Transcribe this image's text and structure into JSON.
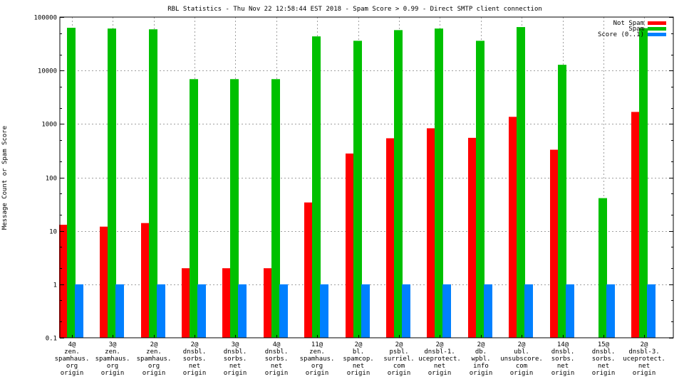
{
  "chart_data": {
    "type": "bar",
    "title": "RBL Statistics - Thu Nov 22 12:58:44 EST 2018 - Spam Score > 0.99 - Direct SMTP client connection",
    "xlabel": "",
    "ylabel": "Message Count or Spam Score",
    "yscale": "log",
    "ylim": [
      0.1,
      100000
    ],
    "yticks": [
      "0.1",
      "1",
      "10",
      "100",
      "1000",
      "10000",
      "100000"
    ],
    "ytick_values": [
      0.1,
      1,
      10,
      100,
      1000,
      10000,
      100000
    ],
    "grid": true,
    "legend_position": "top-right",
    "categories": [
      [
        "4@",
        "zen.",
        "spamhaus.",
        "org",
        "origin"
      ],
      [
        "3@",
        "zen.",
        "spamhaus.",
        "org",
        "origin"
      ],
      [
        "2@",
        "zen.",
        "spamhaus.",
        "org",
        "origin"
      ],
      [
        "2@",
        "dnsbl.",
        "sorbs.",
        "net",
        "origin"
      ],
      [
        "3@",
        "dnsbl.",
        "sorbs.",
        "net",
        "origin"
      ],
      [
        "4@",
        "dnsbl.",
        "sorbs.",
        "net",
        "origin"
      ],
      [
        "11@",
        "zen.",
        "spamhaus.",
        "org",
        "origin"
      ],
      [
        "2@",
        "bl.",
        "spamcop.",
        "net",
        "origin"
      ],
      [
        "2@",
        "psbl.",
        "surriel.",
        "com",
        "origin"
      ],
      [
        "2@",
        "dnsbl-1.",
        "uceprotect.",
        "net",
        "origin"
      ],
      [
        "2@",
        "db.",
        "wpbl.",
        "info",
        "origin"
      ],
      [
        "2@",
        "ubl.",
        "unsubscore.",
        "com",
        "origin"
      ],
      [
        "14@",
        "dnsbl.",
        "sorbs.",
        "net",
        "origin"
      ],
      [
        "15@",
        "dnsbl.",
        "sorbs.",
        "net",
        "origin"
      ],
      [
        "2@",
        "dnsbl-3.",
        "uceprotect.",
        "net",
        "origin"
      ]
    ],
    "series": [
      {
        "name": "Not Spam",
        "color": "#ff0000",
        "values": [
          13,
          12,
          14,
          2,
          2,
          2,
          34,
          280,
          540,
          830,
          550,
          1360,
          330,
          null,
          1680
        ]
      },
      {
        "name": "Spam",
        "color": "#00c000",
        "values": [
          63000,
          61000,
          59000,
          6900,
          6900,
          6900,
          43500,
          36000,
          57000,
          61000,
          36000,
          65000,
          12800,
          41,
          62000
        ]
      },
      {
        "name": "Score (0..1)",
        "color": "#0080ff",
        "values": [
          1,
          1,
          1,
          1,
          1,
          1,
          1,
          1,
          1,
          1,
          1,
          1,
          1,
          1,
          1
        ]
      }
    ]
  }
}
